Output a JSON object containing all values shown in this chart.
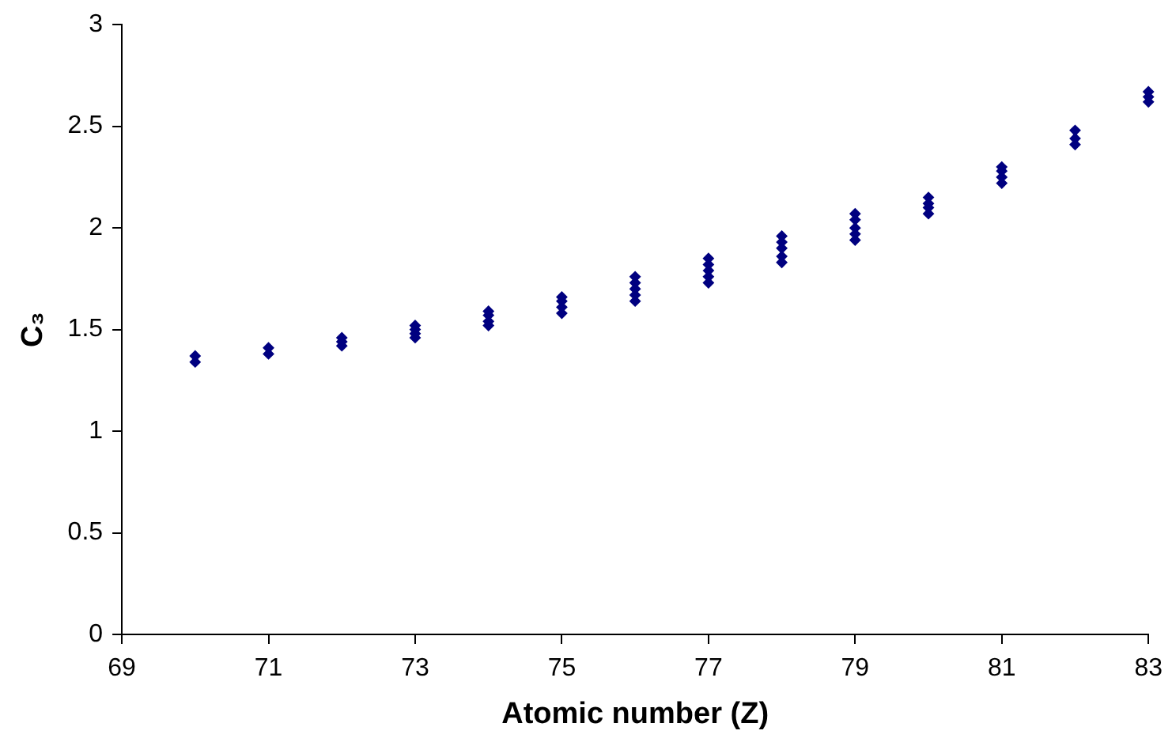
{
  "chart_data": {
    "type": "scatter",
    "xlabel": "Atomic number (Z)",
    "ylabel": "C₃",
    "x": [
      70,
      70,
      71,
      71,
      72,
      72,
      72,
      73,
      73,
      73,
      73,
      74,
      74,
      74,
      74,
      75,
      75,
      75,
      75,
      76,
      76,
      76,
      76,
      76,
      77,
      77,
      77,
      77,
      77,
      78,
      78,
      78,
      78,
      78,
      79,
      79,
      79,
      79,
      79,
      80,
      80,
      80,
      80,
      81,
      81,
      81,
      81,
      82,
      82,
      82,
      83,
      83,
      83
    ],
    "series": [
      {
        "color": "#000080",
        "values": [
          1.34,
          1.37,
          1.38,
          1.41,
          1.42,
          1.44,
          1.46,
          1.46,
          1.48,
          1.5,
          1.52,
          1.52,
          1.54,
          1.57,
          1.59,
          1.58,
          1.61,
          1.64,
          1.66,
          1.64,
          1.67,
          1.7,
          1.73,
          1.76,
          1.73,
          1.76,
          1.79,
          1.82,
          1.85,
          1.83,
          1.86,
          1.9,
          1.93,
          1.96,
          1.94,
          1.97,
          2.0,
          2.04,
          2.07,
          2.07,
          2.1,
          2.12,
          2.15,
          2.22,
          2.25,
          2.28,
          2.3,
          2.41,
          2.44,
          2.48,
          2.62,
          2.645,
          2.67
        ]
      }
    ],
    "xlim": [
      69,
      83
    ],
    "xticks": [
      69,
      71,
      73,
      75,
      77,
      79,
      81,
      83
    ],
    "ylim": [
      0,
      3
    ],
    "yticks": [
      0,
      0.5,
      1,
      1.5,
      2,
      2.5,
      3
    ],
    "grid": false,
    "legend": false,
    "marker": "diamond"
  }
}
